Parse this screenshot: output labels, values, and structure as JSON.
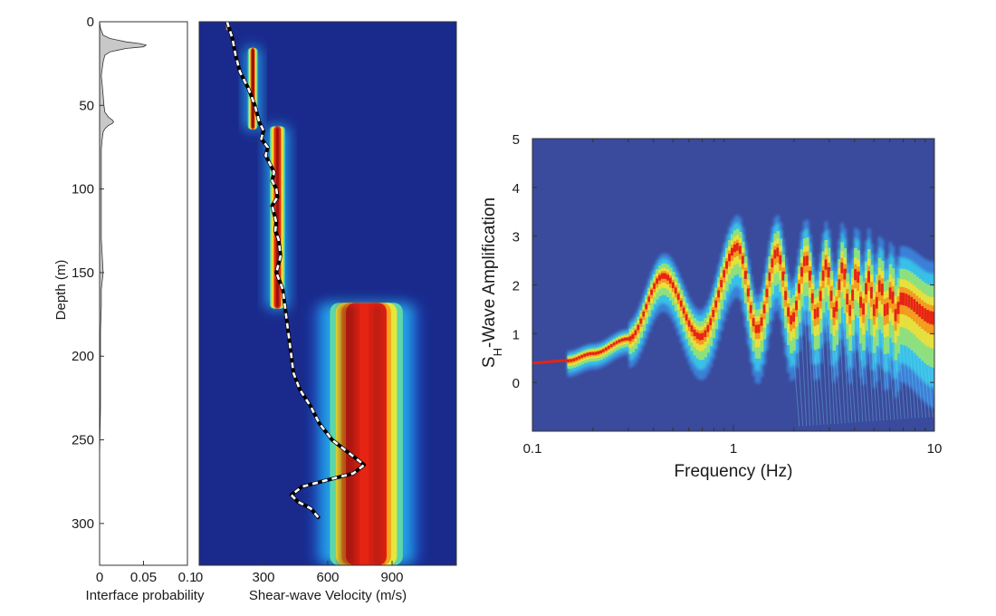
{
  "chart_data": [
    {
      "id": "interface-probability",
      "type": "area",
      "xlabel": "Interface probability",
      "ylabel": "Depth (m)",
      "xlim": [
        0,
        0.1
      ],
      "ylim": [
        0,
        325
      ],
      "y_reversed": true,
      "x_ticks": [
        "0",
        "0.05",
        "0.1"
      ],
      "x_tick_values": [
        0,
        0.05,
        0.1
      ],
      "y_ticks": [
        "0",
        "50",
        "100",
        "150",
        "200",
        "250",
        "300"
      ],
      "y_tick_values": [
        0,
        50,
        100,
        150,
        200,
        250,
        300
      ],
      "fill_color": "#c8c8c8",
      "depth": [
        0,
        4,
        8,
        10,
        12,
        13,
        14,
        15,
        16,
        18,
        20,
        24,
        28,
        32,
        38,
        44,
        50,
        54,
        57,
        59,
        60,
        61,
        62,
        64,
        66,
        70,
        76,
        82,
        90,
        100,
        115,
        130,
        140,
        150,
        155,
        160,
        170,
        185,
        200,
        230,
        260,
        290,
        325
      ],
      "probability": [
        0,
        0.001,
        0.004,
        0.012,
        0.03,
        0.045,
        0.053,
        0.05,
        0.03,
        0.012,
        0.006,
        0.004,
        0.003,
        0.002,
        0.003,
        0.004,
        0.005,
        0.006,
        0.01,
        0.015,
        0.016,
        0.014,
        0.01,
        0.006,
        0.004,
        0.003,
        0.002,
        0.002,
        0.002,
        0.002,
        0.002,
        0.002,
        0.003,
        0.004,
        0.003,
        0.002,
        0.002,
        0.001,
        0.001,
        0.001,
        0,
        0,
        0
      ]
    },
    {
      "id": "shear-wave-velocity",
      "type": "heatmap",
      "xlabel": "Shear-wave Velocity (m/s)",
      "xlim": [
        0,
        1200
      ],
      "ylim": [
        0,
        325
      ],
      "y_reversed": true,
      "x_ticks": [
        "0",
        "300",
        "600",
        "900"
      ],
      "x_tick_values": [
        0,
        300,
        600,
        900
      ],
      "colormap": [
        "#1a2a8c",
        "#1f4fc8",
        "#22a6e8",
        "#5ed6a8",
        "#e6e63c",
        "#f7a21a",
        "#e62414",
        "#7a0a0a"
      ],
      "layers": [
        {
          "top": 15,
          "bottom": 65,
          "vs": 250,
          "spread": 12
        },
        {
          "top": 62,
          "bottom": 172,
          "vs": 365,
          "spread": 30
        },
        {
          "top": 168,
          "bottom": 325,
          "vs": 780,
          "spread": 230
        }
      ],
      "series": [
        {
          "name": "",
          "style": "dashed-white-on-black",
          "vs": [
            130,
            155,
            170,
            190,
            230,
            260,
            270,
            280,
            300,
            290,
            320,
            310,
            330,
            350,
            340,
            360,
            365,
            340,
            350,
            360,
            355,
            370,
            380,
            360,
            390,
            400,
            410,
            420,
            430,
            440,
            470,
            520,
            560,
            620,
            700,
            770,
            720,
            600,
            480,
            430,
            460,
            520,
            560
          ],
          "depth": [
            0,
            10,
            20,
            30,
            40,
            50,
            55,
            60,
            65,
            70,
            75,
            80,
            85,
            90,
            95,
            100,
            105,
            110,
            115,
            120,
            125,
            130,
            140,
            150,
            160,
            170,
            180,
            190,
            200,
            210,
            220,
            230,
            240,
            250,
            258,
            265,
            270,
            274,
            278,
            283,
            287,
            291,
            297
          ]
        }
      ]
    },
    {
      "id": "sh-amplification",
      "type": "heatmap",
      "xlabel": "Frequency (Hz)",
      "ylabel": "SH-Wave Amplification",
      "ylabel_main": "S",
      "ylabel_sub": "H",
      "ylabel_rest": "-Wave Amplification",
      "xscale": "log",
      "xlim": [
        0.1,
        10
      ],
      "ylim": [
        -1,
        5
      ],
      "x_ticks": [
        "0.1",
        "1",
        "10"
      ],
      "x_tick_values": [
        0.1,
        1,
        10
      ],
      "y_ticks": [
        "0",
        "1",
        "2",
        "3",
        "4",
        "5"
      ],
      "y_tick_values": [
        0,
        1,
        2,
        3,
        4,
        5
      ],
      "colormap": [
        "#2b3a8e",
        "#3a80d8",
        "#39c2e8",
        "#8ee07e",
        "#e8e03c",
        "#f49a1e",
        "#e62414"
      ],
      "background_color": "#3a4a9c",
      "resonance_peaks_hz": [
        0.45,
        1.05,
        1.65,
        2.3,
        2.9,
        3.5,
        4.1,
        4.7,
        5.4,
        6.1,
        6.8
      ],
      "resonance_peak_amplification": [
        2.2,
        2.8,
        2.7,
        2.55,
        2.45,
        2.4,
        2.3,
        2.2,
        2.05,
        1.9,
        1.75
      ],
      "trough_amplification": [
        0.95,
        1.1,
        1.3,
        1.4,
        1.45,
        1.5,
        1.5,
        1.5,
        1.45,
        1.4
      ],
      "low_frequency_start": {
        "f": [
          0.1,
          0.15
        ],
        "amplification": 0.4,
        "color": "#e62414"
      }
    }
  ]
}
